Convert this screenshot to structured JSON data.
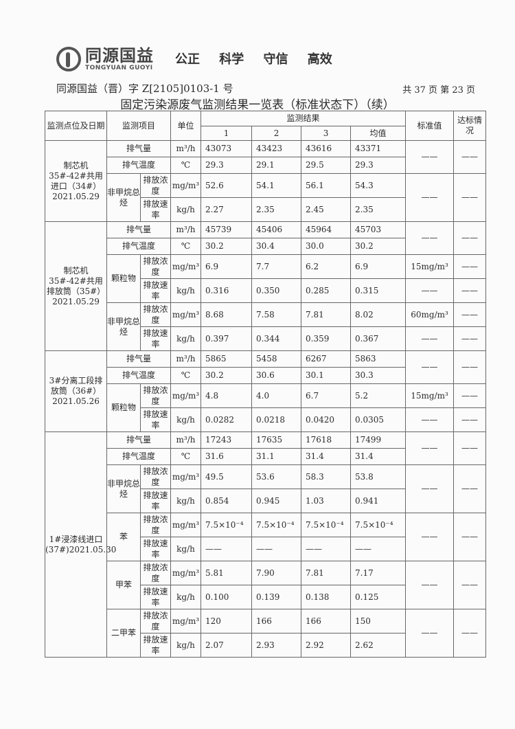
{
  "header": {
    "logo_cn": "同源国益",
    "logo_en": "TONGYUAN GUOYI",
    "slogan": "公正 科学 守信 高效",
    "doc_number": "同源国益（晋）字 Z[2105]0103-1 号",
    "page_info": "共 37 页  第 23 页",
    "title": "固定污染源废气监测结果一览表（标准状态下）（续）"
  },
  "table": {
    "headers": {
      "location": "监测点位及日期",
      "item": "监测项目",
      "unit": "单位",
      "results": "监测结果",
      "runs": [
        "1",
        "2",
        "3",
        "均值"
      ],
      "standard": "标准值",
      "compliance": "达标情况"
    },
    "sections": [
      {
        "location": "制芯机35#-42#共用进口（34#）2021.05.29",
        "rows": [
          {
            "item": "排气量",
            "unit": "m³/h",
            "v": [
              "43073",
              "43423",
              "43616",
              "43371"
            ]
          },
          {
            "item": "排气温度",
            "unit": "℃",
            "v": [
              "29.3",
              "29.1",
              "29.5",
              "29.3"
            ]
          },
          {
            "group": "非甲烷总烃",
            "sub": "排放浓度",
            "unit": "mg/m³",
            "v": [
              "52.6",
              "54.1",
              "56.1",
              "54.3"
            ]
          },
          {
            "group": "非甲烷总烃",
            "sub": "排放速率",
            "unit": "kg/h",
            "v": [
              "2.27",
              "2.35",
              "2.45",
              "2.35"
            ]
          }
        ],
        "standards": [
          {
            "value": "——",
            "ok": "——",
            "rows": 2
          },
          {
            "value": "——",
            "ok": "——",
            "rows": 2
          }
        ]
      },
      {
        "location": "制芯机35#-42#共用排放筒（35#）2021.05.29",
        "rows": [
          {
            "item": "排气量",
            "unit": "m³/h",
            "v": [
              "45739",
              "45406",
              "45964",
              "45703"
            ]
          },
          {
            "item": "排气温度",
            "unit": "℃",
            "v": [
              "30.2",
              "30.4",
              "30.0",
              "30.2"
            ]
          },
          {
            "group": "颗粒物",
            "sub": "排放浓度",
            "unit": "mg/m³",
            "v": [
              "6.9",
              "7.7",
              "6.2",
              "6.9"
            ]
          },
          {
            "group": "颗粒物",
            "sub": "排放速率",
            "unit": "kg/h",
            "v": [
              "0.316",
              "0.350",
              "0.285",
              "0.315"
            ]
          },
          {
            "group": "非甲烷总烃",
            "sub": "排放浓度",
            "unit": "mg/m³",
            "v": [
              "8.68",
              "7.58",
              "7.81",
              "8.02"
            ]
          },
          {
            "group": "非甲烷总烃",
            "sub": "排放速率",
            "unit": "kg/h",
            "v": [
              "0.397",
              "0.344",
              "0.359",
              "0.367"
            ]
          }
        ],
        "standards": [
          {
            "value": "——",
            "ok": "——",
            "rows": 2
          },
          {
            "value": "15mg/m³",
            "ok": "——",
            "rows": 1
          },
          {
            "value": "——",
            "ok": "——",
            "rows": 1
          },
          {
            "value": "60mg/m³",
            "ok": "——",
            "rows": 1
          },
          {
            "value": "——",
            "ok": "——",
            "rows": 1
          }
        ]
      },
      {
        "location": "3#分离工段排放筒（36#）2021.05.26",
        "rows": [
          {
            "item": "排气量",
            "unit": "m³/h",
            "v": [
              "5865",
              "5458",
              "6267",
              "5863"
            ]
          },
          {
            "item": "排气温度",
            "unit": "℃",
            "v": [
              "30.2",
              "30.6",
              "30.1",
              "30.3"
            ]
          },
          {
            "group": "颗粒物",
            "sub": "排放浓度",
            "unit": "mg/m³",
            "v": [
              "4.8",
              "4.0",
              "6.7",
              "5.2"
            ]
          },
          {
            "group": "颗粒物",
            "sub": "排放速率",
            "unit": "kg/h",
            "v": [
              "0.0282",
              "0.0218",
              "0.0420",
              "0.0305"
            ]
          }
        ],
        "standards": [
          {
            "value": "——",
            "ok": "——",
            "rows": 2
          },
          {
            "value": "15mg/m³",
            "ok": "——",
            "rows": 1
          },
          {
            "value": "——",
            "ok": "——",
            "rows": 1
          }
        ]
      },
      {
        "location": "1#浸漆线进口(37#)2021.05.30",
        "rows": [
          {
            "item": "排气量",
            "unit": "m³/h",
            "v": [
              "17243",
              "17635",
              "17618",
              "17499"
            ]
          },
          {
            "item": "排气温度",
            "unit": "℃",
            "v": [
              "31.6",
              "31.1",
              "31.4",
              "31.4"
            ]
          },
          {
            "group": "非甲烷总烃",
            "sub": "排放浓度",
            "unit": "mg/m³",
            "v": [
              "49.5",
              "53.6",
              "58.3",
              "53.8"
            ]
          },
          {
            "group": "非甲烷总烃",
            "sub": "排放速率",
            "unit": "kg/h",
            "v": [
              "0.854",
              "0.945",
              "1.03",
              "0.941"
            ]
          },
          {
            "group": "苯",
            "sub": "排放浓度",
            "unit": "mg/m³",
            "v": [
              "7.5×10⁻⁴",
              "7.5×10⁻⁴",
              "7.5×10⁻⁴",
              "7.5×10⁻⁴"
            ]
          },
          {
            "group": "苯",
            "sub": "排放速率",
            "unit": "kg/h",
            "v": [
              "——",
              "——",
              "——",
              "——"
            ]
          },
          {
            "group": "甲苯",
            "sub": "排放浓度",
            "unit": "mg/m³",
            "v": [
              "5.81",
              "7.90",
              "7.81",
              "7.17"
            ]
          },
          {
            "group": "甲苯",
            "sub": "排放速率",
            "unit": "kg/h",
            "v": [
              "0.100",
              "0.139",
              "0.138",
              "0.125"
            ]
          },
          {
            "group": "二甲苯",
            "sub": "排放浓度",
            "unit": "mg/m³",
            "v": [
              "120",
              "166",
              "166",
              "150"
            ]
          },
          {
            "group": "二甲苯",
            "sub": "排放速率",
            "unit": "kg/h",
            "v": [
              "2.07",
              "2.93",
              "2.92",
              "2.62"
            ]
          }
        ],
        "standards": [
          {
            "value": "——",
            "ok": "——",
            "rows": 2
          },
          {
            "value": "——",
            "ok": "——",
            "rows": 2
          },
          {
            "value": "——",
            "ok": "——",
            "rows": 2
          },
          {
            "value": "——",
            "ok": "——",
            "rows": 2
          },
          {
            "value": "——",
            "ok": "——",
            "rows": 2
          }
        ]
      }
    ]
  }
}
